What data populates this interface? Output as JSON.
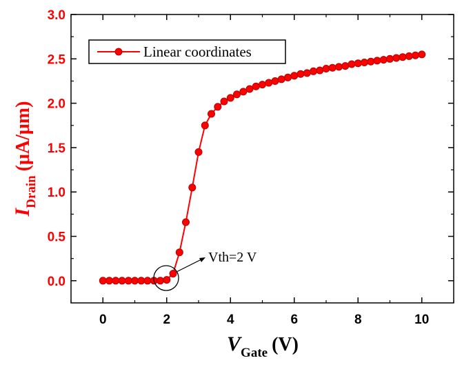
{
  "chart_data": {
    "type": "line",
    "title": "",
    "xlabel": {
      "main": "V",
      "sub": "Gate",
      "unit": "(V)"
    },
    "ylabel": {
      "main": "I",
      "sub": "Drain",
      "unit": "(μA/μm)"
    },
    "xlim": [
      -1,
      11
    ],
    "ylim": [
      -0.25,
      3.0
    ],
    "xticks": [
      0,
      2,
      4,
      6,
      8,
      10
    ],
    "yticks": [
      0.0,
      0.5,
      1.0,
      1.5,
      2.0,
      2.5,
      3.0
    ],
    "xtick_labels": [
      "0",
      "2",
      "4",
      "6",
      "8",
      "10"
    ],
    "ytick_labels": [
      "0.0",
      "0.5",
      "1.0",
      "1.5",
      "2.0",
      "2.5",
      "3.0"
    ],
    "legend_position": "top-left",
    "series": [
      {
        "name": "Linear coordinates",
        "color": "#ff0000",
        "marker": "circle",
        "x": [
          0,
          0.2,
          0.4,
          0.6,
          0.8,
          1.0,
          1.2,
          1.4,
          1.6,
          1.8,
          2.0,
          2.2,
          2.4,
          2.6,
          2.8,
          3.0,
          3.2,
          3.4,
          3.6,
          3.8,
          4.0,
          4.2,
          4.4,
          4.6,
          4.8,
          5.0,
          5.2,
          5.4,
          5.6,
          5.8,
          6.0,
          6.2,
          6.4,
          6.6,
          6.8,
          7.0,
          7.2,
          7.4,
          7.6,
          7.8,
          8.0,
          8.2,
          8.4,
          8.6,
          8.8,
          9.0,
          9.2,
          9.4,
          9.6,
          9.8,
          10.0
        ],
        "y": [
          0.0,
          0.0,
          0.0,
          0.0,
          0.0,
          0.0,
          0.0,
          0.0,
          0.0,
          0.0,
          0.01,
          0.08,
          0.32,
          0.66,
          1.05,
          1.45,
          1.75,
          1.88,
          1.96,
          2.02,
          2.06,
          2.1,
          2.13,
          2.16,
          2.19,
          2.21,
          2.23,
          2.25,
          2.27,
          2.29,
          2.31,
          2.33,
          2.34,
          2.36,
          2.37,
          2.39,
          2.4,
          2.41,
          2.42,
          2.44,
          2.45,
          2.46,
          2.47,
          2.48,
          2.49,
          2.5,
          2.51,
          2.52,
          2.53,
          2.54,
          2.55
        ]
      }
    ],
    "annotations": [
      {
        "text": "Vth=2 V",
        "target": [
          2.0,
          0.0
        ]
      }
    ]
  },
  "colors": {
    "series": "#ff0000",
    "axis": "#000000",
    "ylabel": "#ff0000",
    "ytick": "#ff0000",
    "xtick": "#000000"
  }
}
